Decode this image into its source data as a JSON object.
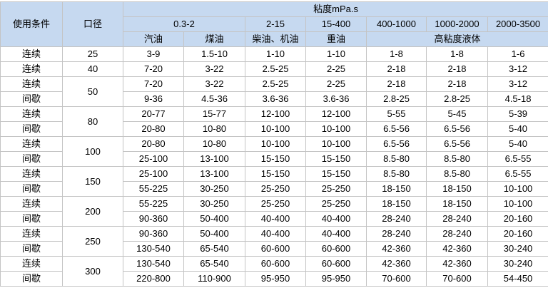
{
  "header": {
    "condition": "使用条件",
    "caliber": "口径",
    "viscosity": "粘度mPa.s",
    "ranges": [
      "0.3-2",
      "2-15",
      "15-400",
      "400-1000",
      "1000-2000",
      "2000-3500"
    ],
    "fluids": [
      "汽油",
      "煤油",
      "柴油、机油",
      "重油",
      "高粘度液体"
    ]
  },
  "groups": [
    {
      "caliber": "25",
      "rows": [
        {
          "condition": "连续",
          "values": [
            "3-9",
            "1.5-10",
            "1-10",
            "1-10",
            "1-8",
            "1-8",
            "1-6"
          ]
        }
      ]
    },
    {
      "caliber": "40",
      "rows": [
        {
          "condition": "连续",
          "values": [
            "7-20",
            "3-22",
            "2.5-25",
            "2-25",
            "2-18",
            "2-18",
            "3-12"
          ]
        }
      ]
    },
    {
      "caliber": "50",
      "rows": [
        {
          "condition": "连续",
          "values": [
            "7-20",
            "3-22",
            "2.5-25",
            "2-25",
            "2-18",
            "2-18",
            "3-12"
          ]
        },
        {
          "condition": "间歇",
          "values": [
            "9-36",
            "4.5-36",
            "3.6-36",
            "3.6-36",
            "2.8-25",
            "2.8-25",
            "4.5-18"
          ]
        }
      ]
    },
    {
      "caliber": "80",
      "rows": [
        {
          "condition": "连续",
          "values": [
            "20-77",
            "15-77",
            "12-100",
            "12-100",
            "5-55",
            "5-45",
            "5-39"
          ]
        },
        {
          "condition": "间歇",
          "values": [
            "20-80",
            "10-80",
            "10-100",
            "10-100",
            "6.5-56",
            "6.5-56",
            "5-40"
          ]
        }
      ]
    },
    {
      "caliber": "100",
      "rows": [
        {
          "condition": "连续",
          "values": [
            "20-80",
            "10-80",
            "10-100",
            "10-100",
            "6.5-56",
            "6.5-56",
            "5-40"
          ]
        },
        {
          "condition": "间歇",
          "values": [
            "25-100",
            "13-100",
            "15-150",
            "15-150",
            "8.5-80",
            "8.5-80",
            "6.5-55"
          ]
        }
      ]
    },
    {
      "caliber": "150",
      "rows": [
        {
          "condition": "连续",
          "values": [
            "25-100",
            "13-100",
            "15-150",
            "15-150",
            "8.5-80",
            "8.5-80",
            "6.5-55"
          ]
        },
        {
          "condition": "间歇",
          "values": [
            "55-225",
            "30-250",
            "25-250",
            "25-250",
            "18-150",
            "18-150",
            "10-100"
          ]
        }
      ]
    },
    {
      "caliber": "200",
      "rows": [
        {
          "condition": "连续",
          "values": [
            "55-225",
            "30-250",
            "25-250",
            "25-250",
            "18-150",
            "18-150",
            "10-100"
          ]
        },
        {
          "condition": "间歇",
          "values": [
            "90-360",
            "50-400",
            "40-400",
            "40-400",
            "28-240",
            "28-240",
            "20-160"
          ]
        }
      ]
    },
    {
      "caliber": "250",
      "rows": [
        {
          "condition": "连续",
          "values": [
            "90-360",
            "50-400",
            "40-400",
            "40-400",
            "28-240",
            "28-240",
            "20-160"
          ]
        },
        {
          "condition": "间歇",
          "values": [
            "130-540",
            "65-540",
            "60-600",
            "60-600",
            "42-360",
            "42-360",
            "30-240"
          ]
        }
      ]
    },
    {
      "caliber": "300",
      "rows": [
        {
          "condition": "连续",
          "values": [
            "130-540",
            "65-540",
            "60-600",
            "60-600",
            "42-360",
            "42-360",
            "30-240"
          ]
        },
        {
          "condition": "间歇",
          "values": [
            "220-800",
            "110-900",
            "95-950",
            "95-950",
            "70-600",
            "70-600",
            "54-450"
          ]
        }
      ]
    }
  ]
}
